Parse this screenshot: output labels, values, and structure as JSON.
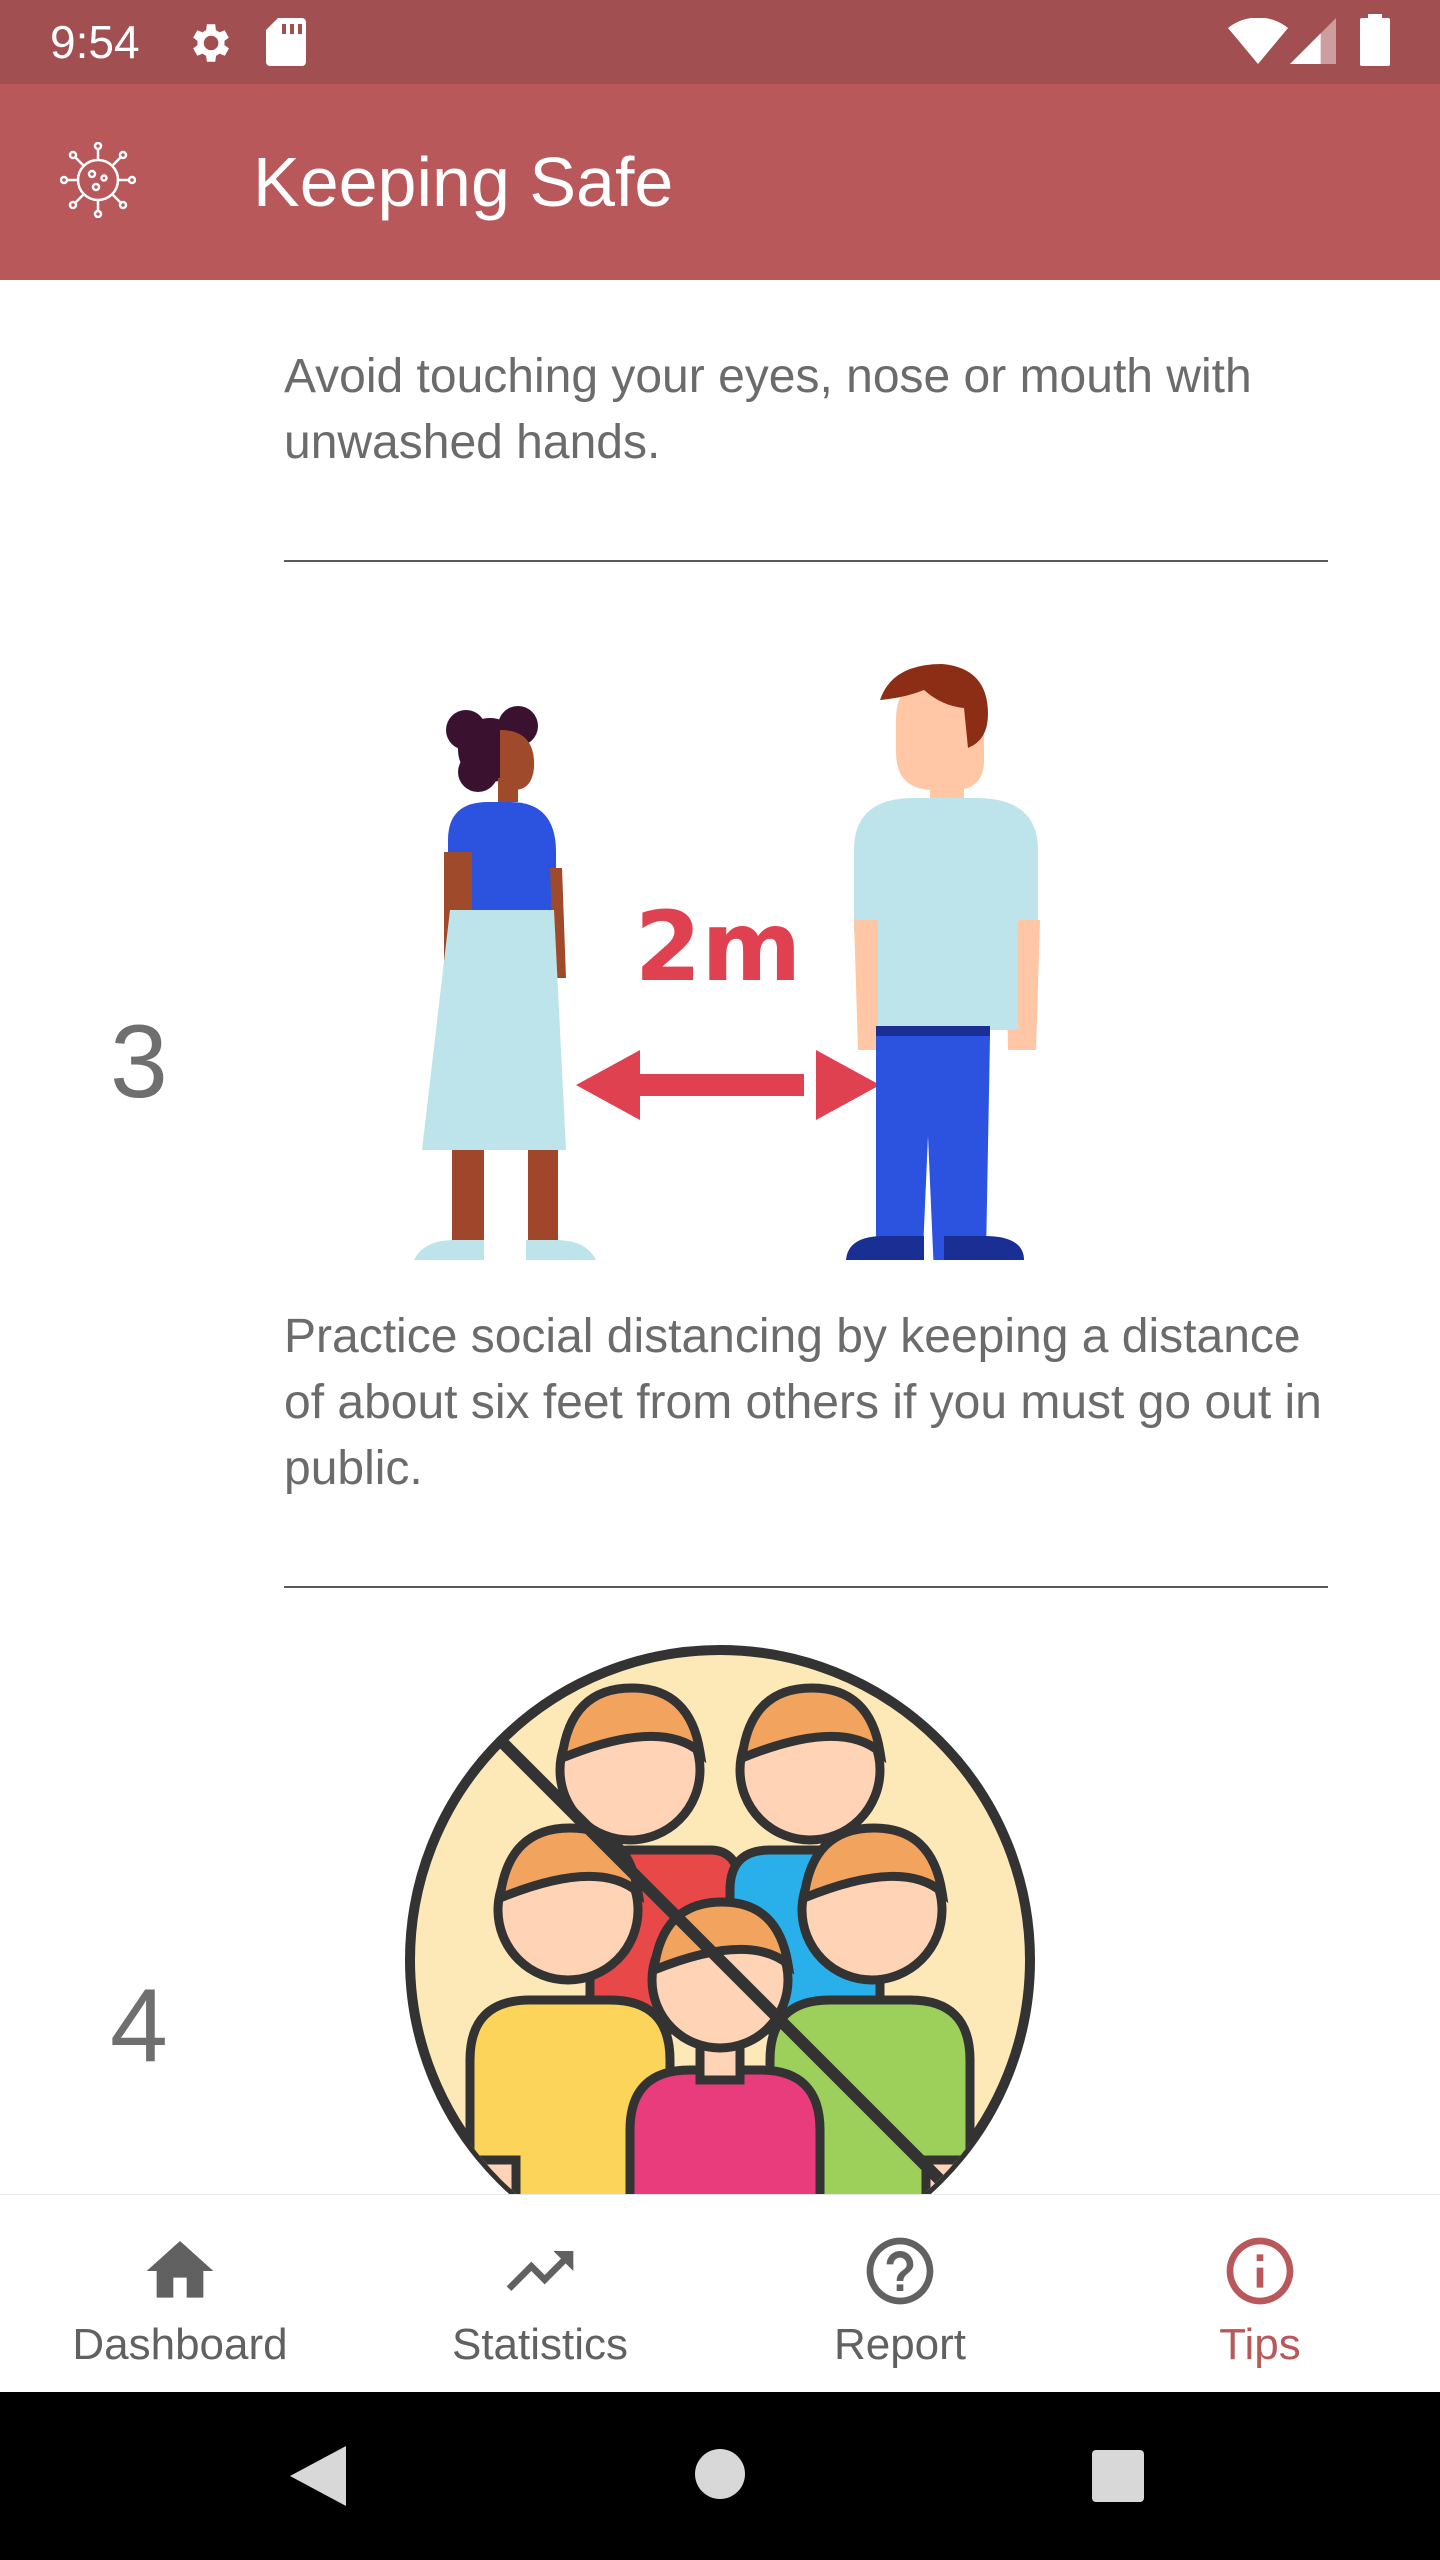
{
  "status_bar": {
    "time": "9:54",
    "icons_left": [
      "gear-icon",
      "sd-card-icon"
    ],
    "icons_right": [
      "wifi-icon",
      "signal-icon",
      "battery-icon"
    ]
  },
  "app_bar": {
    "title": "Keeping Safe",
    "logo_icon": "virus-icon"
  },
  "tips": [
    {
      "number": "",
      "text": "Avoid touching your eyes, nose or mouth with unwashed hands."
    },
    {
      "number": "3",
      "illustration_label": "2m",
      "text": "Practice social distancing by keeping a distance of about six feet from others if you must go out in public."
    },
    {
      "number": "4",
      "illustration": "no-crowds-icon"
    }
  ],
  "bottom_nav": {
    "items": [
      {
        "label": "Dashboard",
        "icon": "home-icon",
        "active": false
      },
      {
        "label": "Statistics",
        "icon": "trending-up-icon",
        "active": false
      },
      {
        "label": "Report",
        "icon": "help-circle-icon",
        "active": false
      },
      {
        "label": "Tips",
        "icon": "info-icon",
        "active": true
      }
    ]
  },
  "colors": {
    "status_bar": "#a24f52",
    "app_bar": "#b8585b",
    "accent": "#b8585b",
    "text_gray": "#6b6b6b",
    "arrow_red": "#e04150"
  },
  "system_nav": [
    "back-icon",
    "home-circle-icon",
    "recents-icon"
  ]
}
